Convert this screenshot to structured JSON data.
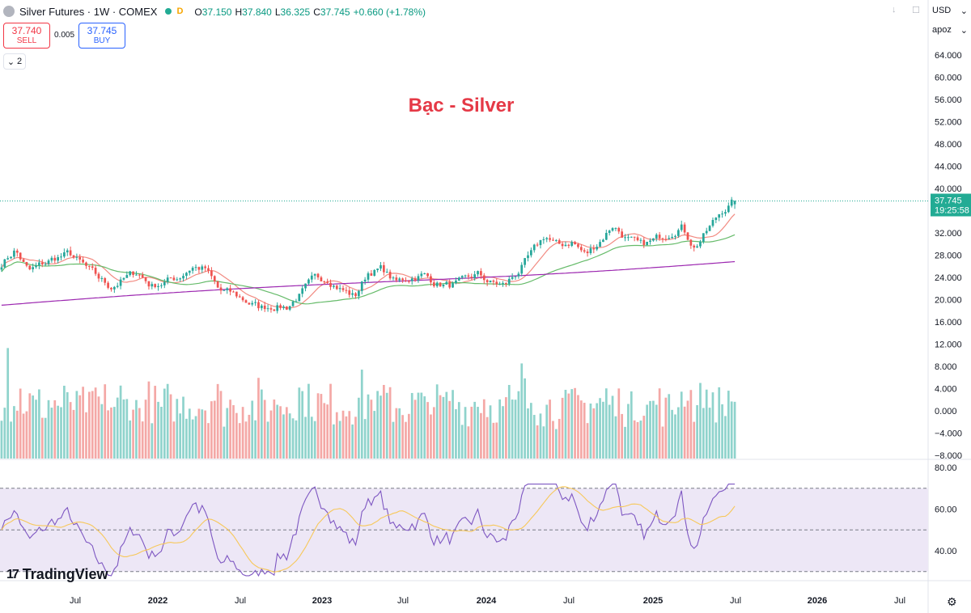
{
  "header": {
    "title": "Silver Futures · 1W · COMEX",
    "delay_badge": "D",
    "ohlc": [
      {
        "key": "O",
        "value": "37.150"
      },
      {
        "key": "H",
        "value": "37.840"
      },
      {
        "key": "L",
        "value": "36.325"
      },
      {
        "key": "C",
        "value": "37.745"
      },
      {
        "key": "",
        "value": "+0.660 (+1.78%)"
      }
    ],
    "up_color": "#089981"
  },
  "trade": {
    "sell_price": "37.740",
    "sell_label": "SELL",
    "spread": "0.005",
    "buy_price": "37.745",
    "buy_label": "BUY"
  },
  "indicators_toggle": "2",
  "scale": {
    "currency": "USD",
    "mode": "apoz"
  },
  "logo": {
    "mark": "17",
    "text": "TradingView"
  },
  "chart_data": {
    "type": "candlestick",
    "title": "Bạc - Silver",
    "title_color": "#e53946",
    "price_axis": {
      "ticks": [
        64,
        60,
        56,
        52,
        48,
        44,
        40,
        36,
        32,
        28,
        24,
        20,
        16,
        12,
        8,
        4,
        0,
        -4,
        -8
      ],
      "tick_labels": [
        "64.000",
        "60.000",
        "56.000",
        "52.000",
        "48.000",
        "44.000",
        "40.000",
        "36.000",
        "32.000",
        "28.000",
        "24.000",
        "20.000",
        "16.000",
        "12.000",
        "8.000",
        "4.000",
        "0.000",
        "−4.000",
        "−8.000"
      ],
      "ylim": [
        -9,
        68
      ]
    },
    "last_price": {
      "value": 37.745,
      "label": "37.745",
      "countdown": "19:25:58",
      "color": "#22ab94"
    },
    "x_axis": {
      "labels": [
        "Jul",
        "2022",
        "Jul",
        "2023",
        "Jul",
        "2024",
        "Jul",
        "2025",
        "Jul",
        "2026",
        "Jul"
      ]
    },
    "up_color": "#26a69a",
    "down_color": "#ef5350",
    "key_points": [
      [
        "2021-01",
        26.5
      ],
      [
        "2021-02",
        29.0
      ],
      [
        "2021-03",
        25.0
      ],
      [
        "2021-05",
        27.5
      ],
      [
        "2021-06",
        28.2
      ],
      [
        "2021-08",
        24.0
      ],
      [
        "2021-09",
        22.3
      ],
      [
        "2021-11",
        25.0
      ],
      [
        "2021-12",
        22.5
      ],
      [
        "2022-02",
        24.0
      ],
      [
        "2022-03",
        26.0
      ],
      [
        "2022-04",
        25.5
      ],
      [
        "2022-05",
        21.5
      ],
      [
        "2022-06",
        21.0
      ],
      [
        "2022-08",
        18.5
      ],
      [
        "2022-09",
        19.0
      ],
      [
        "2022-10",
        18.7
      ],
      [
        "2022-11",
        21.0
      ],
      [
        "2022-12",
        23.5
      ],
      [
        "2023-01",
        24.0
      ],
      [
        "2023-02",
        22.0
      ],
      [
        "2023-03",
        20.5
      ],
      [
        "2023-04",
        25.0
      ],
      [
        "2023-05",
        25.5
      ],
      [
        "2023-06",
        23.0
      ],
      [
        "2023-07",
        24.0
      ],
      [
        "2023-08",
        24.5
      ],
      [
        "2023-09",
        23.0
      ],
      [
        "2023-10",
        22.5
      ],
      [
        "2023-11",
        23.0
      ],
      [
        "2023-12",
        24.5
      ],
      [
        "2024-01",
        23.0
      ],
      [
        "2024-02",
        22.5
      ],
      [
        "2024-03",
        25.0
      ],
      [
        "2024-04",
        28.0
      ],
      [
        "2024-05",
        31.5
      ],
      [
        "2024-06",
        29.5
      ],
      [
        "2024-07",
        30.5
      ],
      [
        "2024-08",
        28.0
      ],
      [
        "2024-09",
        30.5
      ],
      [
        "2024-10",
        33.5
      ],
      [
        "2024-11",
        31.0
      ],
      [
        "2024-12",
        29.5
      ],
      [
        "2025-01",
        30.5
      ],
      [
        "2025-02",
        32.0
      ],
      [
        "2025-03",
        33.5
      ],
      [
        "2025-04",
        29.5
      ],
      [
        "2025-05",
        32.5
      ],
      [
        "2025-06",
        36.0
      ],
      [
        "2025-06-30",
        37.745
      ]
    ],
    "volume": {
      "scale_max": 12.5
    },
    "rsi": {
      "axis_ticks": [
        80,
        60,
        40
      ],
      "axis_labels": [
        "80.00",
        "60.00",
        "40.00"
      ],
      "upper_band": 70,
      "lower_band": 30,
      "mid": 50,
      "line_color": "#7e57c2",
      "ma_color": "#f7c85a",
      "band_fill": "#ede7f6"
    }
  }
}
